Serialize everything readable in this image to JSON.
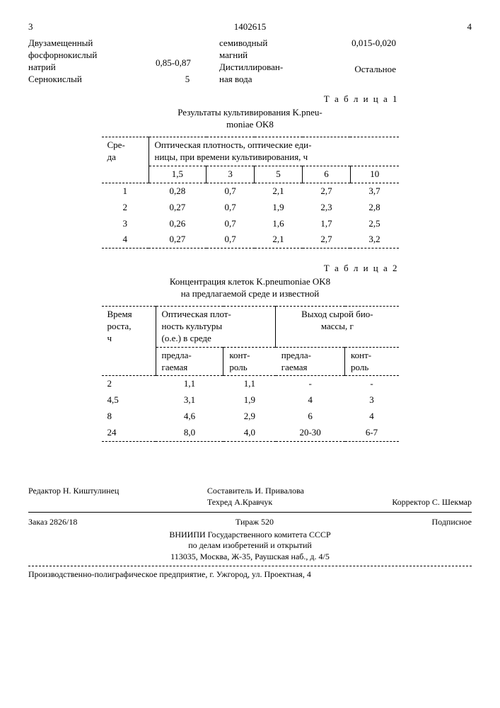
{
  "header": {
    "left_num": "3",
    "doc_num": "1402615",
    "right_num": "4"
  },
  "composition": {
    "left_label": "Двузамещенный\nфосфорнокислый\nнатрий\nСернокислый",
    "left_value": "0,85-0,87",
    "small_num": "5",
    "right_label": "семиводный\nмагний\nДистиллирован-\nная вода",
    "right_value1": "0,015-0,020",
    "right_value2": "Остальное"
  },
  "table1": {
    "label": "Т а б л и ц а 1",
    "caption": "Результаты культивирования K.pneu-\nmoniae OK8",
    "col1_header": "Сре-\nда",
    "group_header": "Оптическая плотность, оптические еди-\nницы, при времени культивирования, ч",
    "time_headers": [
      "1,5",
      "3",
      "5",
      "6",
      "10"
    ],
    "rows": [
      {
        "env": "1",
        "vals": [
          "0,28",
          "0,7",
          "2,1",
          "2,7",
          "3,7"
        ]
      },
      {
        "env": "2",
        "vals": [
          "0,27",
          "0,7",
          "1,9",
          "2,3",
          "2,8"
        ]
      },
      {
        "env": "3",
        "vals": [
          "0,26",
          "0,7",
          "1,6",
          "1,7",
          "2,5"
        ]
      },
      {
        "env": "4",
        "vals": [
          "0,27",
          "0,7",
          "2,1",
          "2,7",
          "3,2"
        ]
      }
    ]
  },
  "table2": {
    "label": "Т а б л и ц а 2",
    "caption": "Концентрация клеток K.pneumoniae OK8\nна предлагаемой среде и известной",
    "col1_header": "Время\nроста,\nч",
    "group1": "Оптическая плот-\nность культуры\n(о.е.) в среде",
    "group2": "Выход сырой био-\nмассы, г",
    "sub1": "предла-\nгаемая",
    "sub2": "конт-\nроль",
    "sub3": "предла-\nгаемая",
    "sub4": "конт-\nроль",
    "rows": [
      {
        "t": "2",
        "v": [
          "1,1",
          "1,1",
          "-",
          "-"
        ]
      },
      {
        "t": "4,5",
        "v": [
          "3,1",
          "1,9",
          "4",
          "3"
        ]
      },
      {
        "t": "8",
        "v": [
          "4,6",
          "2,9",
          "6",
          "4"
        ]
      },
      {
        "t": "24",
        "v": [
          "8,0",
          "4,0",
          "20-30",
          "6-7"
        ]
      }
    ]
  },
  "footer": {
    "editor": "Редактор Н. Киштулинец",
    "compiler": "Составитель И. Привалова",
    "techred": "Техред А.Кравчук",
    "corrector": "Корректор С. Шекмар",
    "order": "Заказ 2826/18",
    "tirazh": "Тираж 520",
    "subscribe": "Подписное",
    "org1": "ВНИИПИ Государственного комитета СССР",
    "org2": "по делам изобретений и открытий",
    "addr": "113035, Москва, Ж-35, Раушская наб., д. 4/5",
    "printer": "Производственно-полиграфическое предприятие, г. Ужгород, ул. Проектная, 4"
  }
}
